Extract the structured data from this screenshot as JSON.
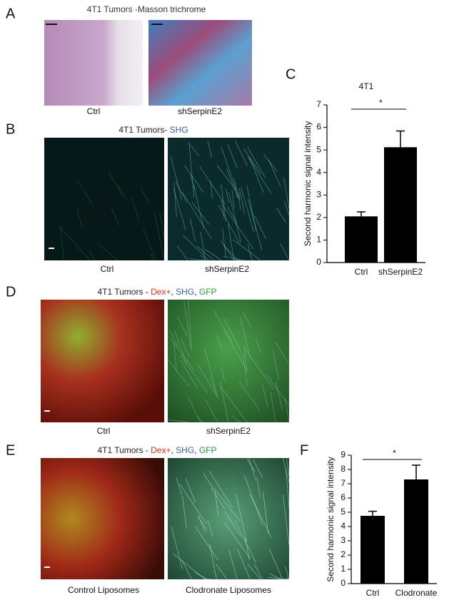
{
  "panels": [
    {
      "label": "A",
      "title": [
        {
          "text": "4T1 Tumors -Masson trichrome",
          "color": "#333333"
        }
      ],
      "captions": [
        "Ctrl",
        "shSerpinE2"
      ]
    },
    {
      "label": "B",
      "title": [
        {
          "text": "4T1 Tumors- ",
          "color": "#222222"
        },
        {
          "text": "SHG",
          "color": "#3a5fb0"
        }
      ],
      "captions": [
        "Ctrl",
        "shSerpinE2"
      ]
    },
    {
      "label": "D",
      "title": [
        {
          "text": "4T1 Tumors - ",
          "color": "#222222"
        },
        {
          "text": "Dex+",
          "color": "#e03020"
        },
        {
          "text": ", ",
          "color": "#222222"
        },
        {
          "text": "SHG",
          "color": "#3a5fb0"
        },
        {
          "text": ", ",
          "color": "#222222"
        },
        {
          "text": "GFP",
          "color": "#2a9a3a"
        }
      ],
      "captions": [
        "Ctrl",
        "shSerpinE2"
      ]
    },
    {
      "label": "E",
      "title": [
        {
          "text": "4T1 Tumors - ",
          "color": "#222222"
        },
        {
          "text": "Dex+",
          "color": "#e03020"
        },
        {
          "text": ", ",
          "color": "#222222"
        },
        {
          "text": "SHG",
          "color": "#3a5fb0"
        },
        {
          "text": ", ",
          "color": "#222222"
        },
        {
          "text": "GFP",
          "color": "#2a9a3a"
        }
      ],
      "captions": [
        "Control Liposomes",
        "Clodronate Liposomes"
      ]
    }
  ],
  "chart_data": [
    {
      "type": "bar",
      "label": "C",
      "title": "4T1",
      "ylabel": "Second harmonic signal intensity",
      "categories": [
        "Ctrl",
        "shSerpinE2"
      ],
      "values": [
        2.05,
        5.12
      ],
      "errors": [
        0.2,
        0.72
      ],
      "color": "#000000",
      "ylim": [
        0,
        7
      ],
      "yticks": [
        0,
        1,
        2,
        3,
        4,
        5,
        6,
        7
      ],
      "significance": "*"
    },
    {
      "type": "bar",
      "label": "F",
      "ylabel": "Second harmonic signal intensity",
      "categories": [
        "Ctrl",
        "Clodronate"
      ],
      "values": [
        4.75,
        7.3
      ],
      "errors": [
        0.32,
        1.0
      ],
      "color": "#000000",
      "ylim": [
        0,
        9
      ],
      "yticks": [
        0,
        1,
        2,
        3,
        4,
        5,
        6,
        7,
        8,
        9
      ],
      "significance": "*"
    }
  ]
}
